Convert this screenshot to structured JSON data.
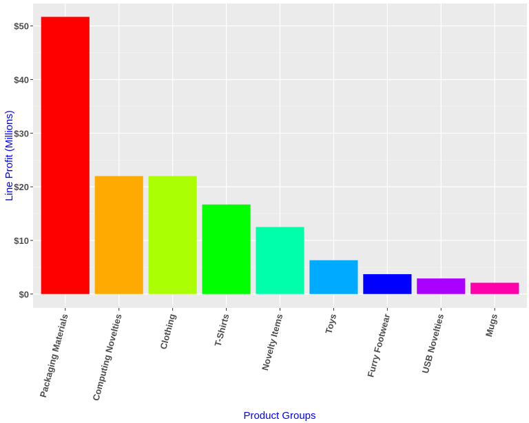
{
  "chart_data": {
    "type": "bar",
    "title": "",
    "xlabel": "Product Groups",
    "ylabel": "Line Profit (Millions)",
    "categories": [
      "Packaging Materials",
      "Computing Novelties",
      "Clothing",
      "T-Shirts",
      "Novelty Items",
      "Toys",
      "Furry Footwear",
      "USB Novelties",
      "Mugs"
    ],
    "values": [
      51.7,
      22.0,
      22.0,
      16.7,
      12.5,
      6.3,
      3.7,
      2.9,
      2.1
    ],
    "colors": [
      "#ff0000",
      "#ffaa00",
      "#aaff00",
      "#00ff00",
      "#00ffaa",
      "#00aaff",
      "#0000ff",
      "#aa00ff",
      "#ff00aa"
    ],
    "yticks": [
      0,
      10,
      20,
      30,
      40,
      50
    ],
    "ytick_labels": [
      "$0",
      "$10",
      "$20",
      "$30",
      "$40",
      "$50"
    ],
    "ylim": [
      -2.6,
      54.2
    ],
    "grid": true,
    "legend": "none",
    "panel_background": "#ebebeb",
    "axis_title_color": "#0000ff"
  }
}
